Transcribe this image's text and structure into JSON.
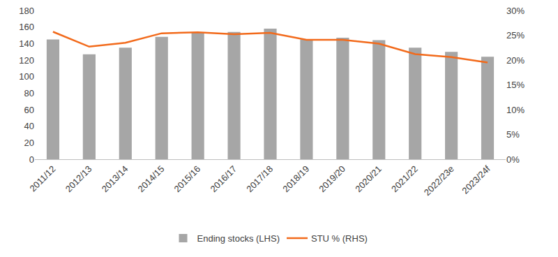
{
  "chart_data": {
    "type": "bar",
    "categories": [
      "2011/12",
      "2012/13",
      "2013/14",
      "2014/15",
      "2015/16",
      "2016/17",
      "2017/18",
      "2018/19",
      "2019/20",
      "2020/21",
      "2021/22",
      "2022/23e",
      "2023/24f"
    ],
    "series": [
      {
        "name": "Ending stocks (LHS)",
        "type": "bar",
        "color": "#a6a6a6",
        "values": [
          145,
          127,
          135,
          148,
          153,
          154,
          158,
          145,
          147,
          144,
          135,
          130,
          124
        ]
      },
      {
        "name": "STU % (RHS)",
        "type": "line",
        "axis": "y2",
        "color": "#f26a1b",
        "values": [
          25.7,
          22.7,
          23.5,
          25.4,
          25.6,
          25.2,
          25.5,
          24.1,
          24.1,
          23.3,
          21.2,
          20.6,
          19.5
        ]
      }
    ],
    "ylim": [
      0,
      180
    ],
    "yticks": [
      0,
      20,
      40,
      60,
      80,
      100,
      120,
      140,
      160,
      180
    ],
    "y2lim": [
      0,
      30
    ],
    "y2ticks": [
      {
        "value": 0,
        "label": "0%"
      },
      {
        "value": 5,
        "label": "5%"
      },
      {
        "value": 10,
        "label": "10%"
      },
      {
        "value": 15,
        "label": "15%"
      },
      {
        "value": 20,
        "label": "20%"
      },
      {
        "value": 25,
        "label": "25%"
      },
      {
        "value": 30,
        "label": "30%"
      }
    ],
    "grid": false,
    "legend": "bottom"
  }
}
